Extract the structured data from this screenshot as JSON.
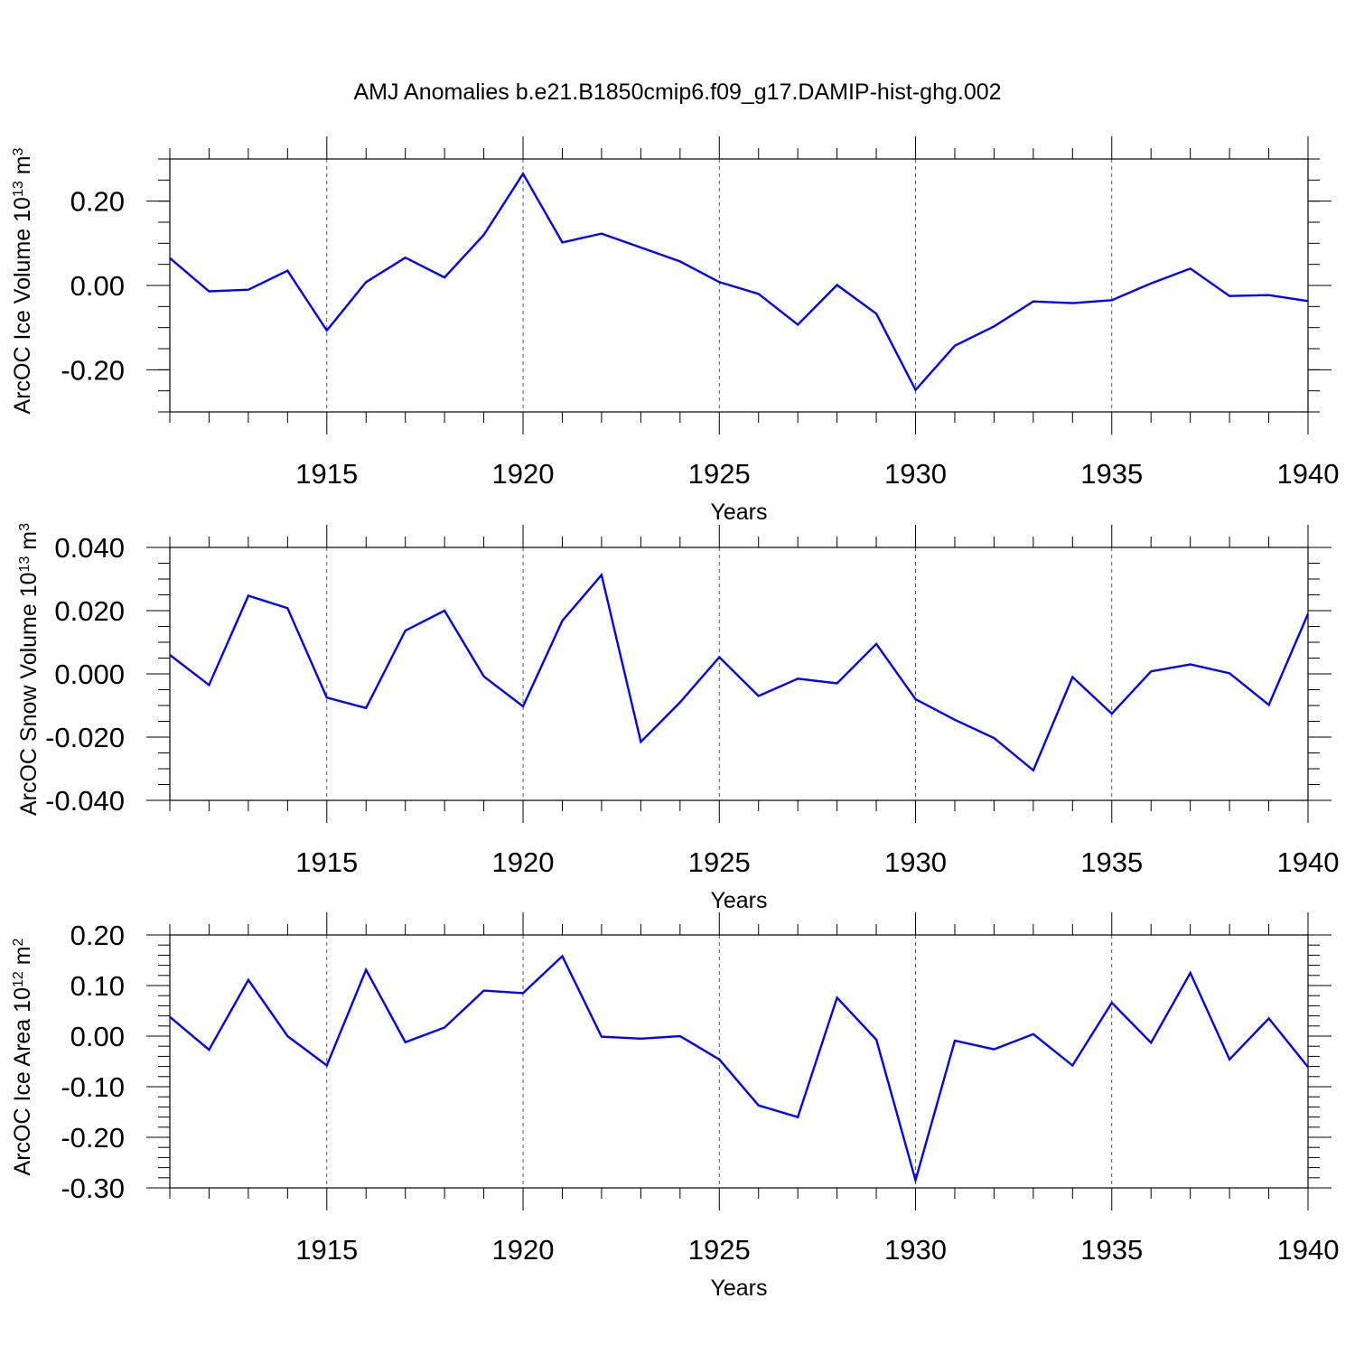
{
  "chart_data": {
    "title": "AMJ Anomalies b.e21.B1850cmip6.f09_g17.DAMIP-hist-ghg.002",
    "line_color": "#0000ff",
    "axis_color": "#000000",
    "grid_color": "#000000",
    "panels": [
      {
        "type": "line",
        "series_name": "ArcOC Ice Volume",
        "ylabel_main": "ArcOC Ice Volume 10",
        "ylabel_exp": "13",
        "ylabel_unit": "m",
        "ylabel_unit_exp": "3",
        "xlabel": "Years",
        "xlim": [
          1911,
          1940
        ],
        "ylim": [
          -0.3,
          0.3
        ],
        "x_ticks": [
          1915,
          1920,
          1925,
          1930,
          1935,
          1940
        ],
        "x_tick_labels": [
          "1915",
          "1920",
          "1925",
          "1930",
          "1935",
          "1940"
        ],
        "y_ticks": [
          0.2,
          0.0,
          -0.2
        ],
        "y_tick_labels": [
          "0.20",
          "0.00",
          "-0.20"
        ],
        "y_minor_step": 0.05,
        "grid": "dashed vertical at major x ticks",
        "x": [
          1911,
          1912,
          1913,
          1914,
          1915,
          1916,
          1917,
          1918,
          1919,
          1920,
          1921,
          1922,
          1923,
          1924,
          1925,
          1926,
          1927,
          1928,
          1929,
          1930,
          1931,
          1932,
          1933,
          1934,
          1935,
          1936,
          1937,
          1938,
          1939,
          1940
        ],
        "values": [
          0.065,
          -0.014,
          -0.01,
          0.035,
          -0.107,
          0.008,
          0.066,
          0.019,
          0.12,
          0.265,
          0.102,
          0.123,
          0.09,
          0.057,
          0.008,
          -0.02,
          -0.093,
          0.001,
          -0.067,
          -0.248,
          -0.143,
          -0.097,
          -0.038,
          -0.042,
          -0.035,
          0.005,
          0.04,
          -0.025,
          -0.023,
          -0.037
        ]
      },
      {
        "type": "line",
        "series_name": "ArcOC Snow Volume",
        "ylabel_main": "ArcOC Snow Volume 10",
        "ylabel_exp": "13",
        "ylabel_unit": "m",
        "ylabel_unit_exp": "3",
        "xlabel": "Years",
        "xlim": [
          1911,
          1940
        ],
        "ylim": [
          -0.04,
          0.04
        ],
        "x_ticks": [
          1915,
          1920,
          1925,
          1930,
          1935,
          1940
        ],
        "x_tick_labels": [
          "1915",
          "1920",
          "1925",
          "1930",
          "1935",
          "1940"
        ],
        "y_ticks": [
          0.04,
          0.02,
          0.0,
          -0.02,
          -0.04
        ],
        "y_tick_labels": [
          "0.040",
          "0.020",
          "0.000",
          "-0.020",
          "-0.040"
        ],
        "y_minor_step": 0.005,
        "grid": "dashed vertical at major x ticks",
        "x": [
          1911,
          1912,
          1913,
          1914,
          1915,
          1916,
          1917,
          1918,
          1919,
          1920,
          1921,
          1922,
          1923,
          1924,
          1925,
          1926,
          1927,
          1928,
          1929,
          1930,
          1931,
          1932,
          1933,
          1934,
          1935,
          1936,
          1937,
          1938,
          1939,
          1940
        ],
        "values": [
          0.006,
          -0.0035,
          0.0247,
          0.0208,
          -0.0075,
          -0.0108,
          0.0137,
          0.02,
          -0.0008,
          -0.0103,
          0.0168,
          0.0313,
          -0.0215,
          -0.009,
          0.0053,
          -0.007,
          -0.0015,
          -0.003,
          0.0095,
          -0.008,
          -0.0145,
          -0.0203,
          -0.0305,
          -0.001,
          -0.0126,
          0.0008,
          0.003,
          0.0002,
          -0.0098,
          0.019
        ]
      },
      {
        "type": "line",
        "series_name": "ArcOC Ice Area",
        "ylabel_main": "ArcOC Ice Area 10",
        "ylabel_exp": "12",
        "ylabel_unit": "m",
        "ylabel_unit_exp": "2",
        "xlabel": "Years",
        "xlim": [
          1911,
          1940
        ],
        "ylim": [
          -0.3,
          0.2
        ],
        "x_ticks": [
          1915,
          1920,
          1925,
          1930,
          1935,
          1940
        ],
        "x_tick_labels": [
          "1915",
          "1920",
          "1925",
          "1930",
          "1935",
          "1940"
        ],
        "y_ticks": [
          0.2,
          0.1,
          0.0,
          -0.1,
          -0.2,
          -0.3
        ],
        "y_tick_labels": [
          "0.20",
          "0.10",
          "0.00",
          "-0.10",
          "-0.20",
          "-0.30"
        ],
        "y_minor_step": 0.02,
        "grid": "dashed vertical at major x ticks",
        "x": [
          1911,
          1912,
          1913,
          1914,
          1915,
          1916,
          1917,
          1918,
          1919,
          1920,
          1921,
          1922,
          1923,
          1924,
          1925,
          1926,
          1927,
          1928,
          1929,
          1930,
          1931,
          1932,
          1933,
          1934,
          1935,
          1936,
          1937,
          1938,
          1939,
          1940
        ],
        "values": [
          0.038,
          -0.027,
          0.111,
          0.0,
          -0.058,
          0.131,
          -0.012,
          0.017,
          0.09,
          0.085,
          0.158,
          -0.001,
          -0.005,
          0.0,
          -0.046,
          -0.137,
          -0.16,
          0.076,
          -0.007,
          -0.285,
          -0.009,
          -0.026,
          0.004,
          -0.058,
          0.066,
          -0.013,
          0.125,
          -0.046,
          0.035,
          -0.061
        ]
      }
    ]
  }
}
